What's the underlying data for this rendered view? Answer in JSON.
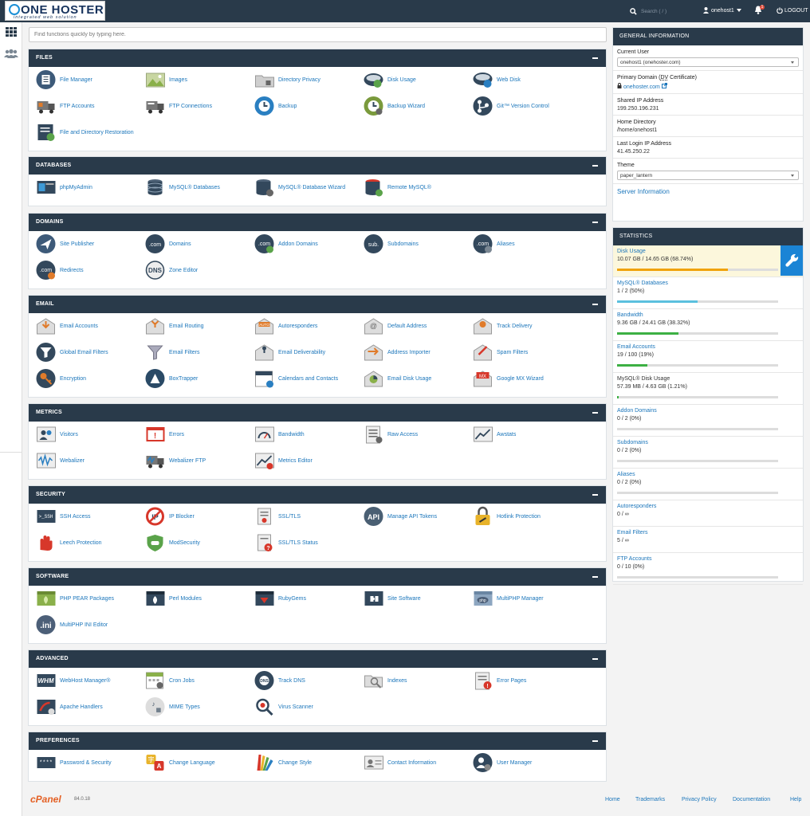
{
  "brand": {
    "logo_main": "ONE HOSTER",
    "logo_sub": "integrated web solution"
  },
  "topbar": {
    "search_placeholder": "Search ( / )",
    "username": "onehost1",
    "notification_count": "1",
    "logout": "LOGOUT"
  },
  "quick_search_placeholder": "Find functions quickly by typing here.",
  "colors": {
    "header_bg": "#293a4a",
    "link": "#1b76bb",
    "accent": "#1b84d5",
    "logo_orange": "#e46024"
  },
  "sections": [
    {
      "title": "FILES",
      "items": [
        {
          "label": "File Manager",
          "icon": "file-manager-icon"
        },
        {
          "label": "Images",
          "icon": "images-icon"
        },
        {
          "label": "Directory Privacy",
          "icon": "directory-privacy-icon"
        },
        {
          "label": "Disk Usage",
          "icon": "disk-usage-icon"
        },
        {
          "label": "Web Disk",
          "icon": "web-disk-icon"
        },
        {
          "label": "FTP Accounts",
          "icon": "ftp-accounts-icon"
        },
        {
          "label": "FTP Connections",
          "icon": "ftp-connections-icon"
        },
        {
          "label": "Backup",
          "icon": "backup-icon"
        },
        {
          "label": "Backup Wizard",
          "icon": "backup-wizard-icon"
        },
        {
          "label": "Git™ Version Control",
          "icon": "git-icon"
        },
        {
          "label": "File and Directory Restoration",
          "icon": "file-restoration-icon"
        }
      ]
    },
    {
      "title": "DATABASES",
      "items": [
        {
          "label": "phpMyAdmin",
          "icon": "phpmyadmin-icon"
        },
        {
          "label": "MySQL® Databases",
          "icon": "mysql-databases-icon"
        },
        {
          "label": "MySQL® Database Wizard",
          "icon": "mysql-wizard-icon"
        },
        {
          "label": "Remote MySQL®",
          "icon": "remote-mysql-icon"
        }
      ]
    },
    {
      "title": "DOMAINS",
      "items": [
        {
          "label": "Site Publisher",
          "icon": "site-publisher-icon"
        },
        {
          "label": "Domains",
          "icon": "domains-icon"
        },
        {
          "label": "Addon Domains",
          "icon": "addon-domains-icon"
        },
        {
          "label": "Subdomains",
          "icon": "subdomains-icon"
        },
        {
          "label": "Aliases",
          "icon": "aliases-icon"
        },
        {
          "label": "Redirects",
          "icon": "redirects-icon"
        },
        {
          "label": "Zone Editor",
          "icon": "zone-editor-icon"
        }
      ]
    },
    {
      "title": "EMAIL",
      "items": [
        {
          "label": "Email Accounts",
          "icon": "email-accounts-icon"
        },
        {
          "label": "Email Routing",
          "icon": "email-routing-icon"
        },
        {
          "label": "Autoresponders",
          "icon": "autoresponders-icon"
        },
        {
          "label": "Default Address",
          "icon": "default-address-icon"
        },
        {
          "label": "Track Delivery",
          "icon": "track-delivery-icon"
        },
        {
          "label": "Global Email Filters",
          "icon": "global-filters-icon"
        },
        {
          "label": "Email Filters",
          "icon": "email-filters-icon"
        },
        {
          "label": "Email Deliverability",
          "icon": "email-deliverability-icon"
        },
        {
          "label": "Address Importer",
          "icon": "address-importer-icon"
        },
        {
          "label": "Spam Filters",
          "icon": "spam-filters-icon"
        },
        {
          "label": "Encryption",
          "icon": "encryption-icon"
        },
        {
          "label": "BoxTrapper",
          "icon": "boxtrapper-icon"
        },
        {
          "label": "Calendars and Contacts",
          "icon": "calendars-icon"
        },
        {
          "label": "Email Disk Usage",
          "icon": "email-disk-usage-icon"
        },
        {
          "label": "Google MX Wizard",
          "icon": "google-mx-icon"
        }
      ]
    },
    {
      "title": "METRICS",
      "items": [
        {
          "label": "Visitors",
          "icon": "visitors-icon"
        },
        {
          "label": "Errors",
          "icon": "errors-icon"
        },
        {
          "label": "Bandwidth",
          "icon": "bandwidth-icon"
        },
        {
          "label": "Raw Access",
          "icon": "raw-access-icon"
        },
        {
          "label": "Awstats",
          "icon": "awstats-icon"
        },
        {
          "label": "Webalizer",
          "icon": "webalizer-icon"
        },
        {
          "label": "Webalizer FTP",
          "icon": "webalizer-ftp-icon"
        },
        {
          "label": "Metrics Editor",
          "icon": "metrics-editor-icon"
        }
      ]
    },
    {
      "title": "SECURITY",
      "items": [
        {
          "label": "SSH Access",
          "icon": "ssh-access-icon"
        },
        {
          "label": "IP Blocker",
          "icon": "ip-blocker-icon"
        },
        {
          "label": "SSL/TLS",
          "icon": "ssl-tls-icon"
        },
        {
          "label": "Manage API Tokens",
          "icon": "api-tokens-icon"
        },
        {
          "label": "Hotlink Protection",
          "icon": "hotlink-protection-icon"
        },
        {
          "label": "Leech Protection",
          "icon": "leech-protection-icon"
        },
        {
          "label": "ModSecurity",
          "icon": "modsecurity-icon"
        },
        {
          "label": "SSL/TLS Status",
          "icon": "ssl-status-icon"
        }
      ]
    },
    {
      "title": "SOFTWARE",
      "items": [
        {
          "label": "PHP PEAR Packages",
          "icon": "php-pear-icon"
        },
        {
          "label": "Perl Modules",
          "icon": "perl-modules-icon"
        },
        {
          "label": "RubyGems",
          "icon": "rubygems-icon"
        },
        {
          "label": "Site Software",
          "icon": "site-software-icon"
        },
        {
          "label": "MultiPHP Manager",
          "icon": "multiphp-manager-icon"
        },
        {
          "label": "MultiPHP INI Editor",
          "icon": "multiphp-ini-icon"
        }
      ]
    },
    {
      "title": "ADVANCED",
      "items": [
        {
          "label": "WebHost Manager®",
          "icon": "whm-icon"
        },
        {
          "label": "Cron Jobs",
          "icon": "cron-jobs-icon"
        },
        {
          "label": "Track DNS",
          "icon": "track-dns-icon"
        },
        {
          "label": "Indexes",
          "icon": "indexes-icon"
        },
        {
          "label": "Error Pages",
          "icon": "error-pages-icon"
        },
        {
          "label": "Apache Handlers",
          "icon": "apache-handlers-icon"
        },
        {
          "label": "MIME Types",
          "icon": "mime-types-icon"
        },
        {
          "label": "Virus Scanner",
          "icon": "virus-scanner-icon"
        }
      ]
    },
    {
      "title": "PREFERENCES",
      "items": [
        {
          "label": "Password & Security",
          "icon": "password-icon"
        },
        {
          "label": "Change Language",
          "icon": "change-language-icon"
        },
        {
          "label": "Change Style",
          "icon": "change-style-icon"
        },
        {
          "label": "Contact Information",
          "icon": "contact-info-icon"
        },
        {
          "label": "User Manager",
          "icon": "user-manager-icon"
        }
      ]
    }
  ],
  "general": {
    "title": "GENERAL INFORMATION",
    "current_user_label": "Current User",
    "current_user_value": "onehost1 (onehoster.com)",
    "primary_domain_label": "Primary Domain (",
    "primary_domain_dv": "DV",
    "primary_domain_cert": " Certificate)",
    "primary_domain_value": "onehoster.com",
    "shared_ip_label": "Shared IP Address",
    "shared_ip_value": "199.250.196.231",
    "home_dir_label": "Home Directory",
    "home_dir_value": "/home/onehost1",
    "last_login_label": "Last Login IP Address",
    "last_login_value": "41.45.250.22",
    "theme_label": "Theme",
    "theme_value": "paper_lantern",
    "server_info": "Server Information"
  },
  "statistics": {
    "title": "STATISTICS",
    "items": [
      {
        "label": "Disk Usage",
        "value": "10.07 GB / 14.65 GB   (68.74%)",
        "percent": 68.74,
        "color": "#f0a30a",
        "highlight": true
      },
      {
        "label": "MySQL® Databases",
        "value": "1 / 2   (50%)",
        "percent": 50,
        "color": "#5bc0de"
      },
      {
        "label": "Bandwidth",
        "value": "9.36 GB / 24.41 GB   (38.32%)",
        "percent": 38.32,
        "color": "#3cb043"
      },
      {
        "label": "Email Accounts",
        "value": "19 / 100   (19%)",
        "percent": 19,
        "color": "#3cb043"
      },
      {
        "label": "MySQL® Disk Usage",
        "value": "57.39 MB / 4.63 GB   (1.21%)",
        "percent": 1.21,
        "color": "#3cb043",
        "dark": true
      },
      {
        "label": "Addon Domains",
        "value": "0 / 2   (0%)",
        "percent": 0,
        "color": "#3cb043"
      },
      {
        "label": "Subdomains",
        "value": "0 / 2   (0%)",
        "percent": 0,
        "color": "#3cb043"
      },
      {
        "label": "Aliases",
        "value": "0 / 2   (0%)",
        "percent": 0,
        "color": "#3cb043"
      },
      {
        "label": "Autoresponders",
        "value": "0 / ∞",
        "percent": null
      },
      {
        "label": "Email Filters",
        "value": "5 / ∞",
        "percent": null
      },
      {
        "label": "FTP Accounts",
        "value": "0 / 10   (0%)",
        "percent": 0,
        "color": "#3cb043"
      }
    ]
  },
  "footer": {
    "logo": "cPanel",
    "version": "84.0.18",
    "links": [
      "Home",
      "Trademarks",
      "Privacy Policy",
      "Documentation",
      "Help"
    ]
  }
}
